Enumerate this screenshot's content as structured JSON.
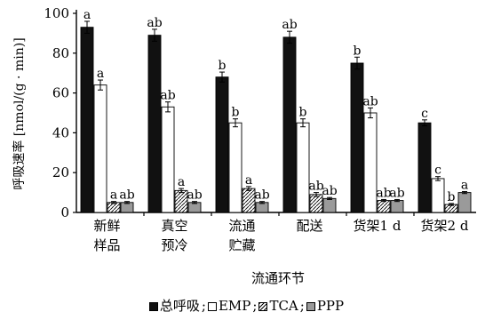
{
  "chart_data": {
    "type": "bar",
    "ylabel": "呼吸速率 [nmol/(g · min)]",
    "xlabel": "流通环节",
    "ylim": [
      0,
      100
    ],
    "yticks": [
      0,
      20,
      40,
      60,
      80,
      100
    ],
    "categories": [
      [
        "新鲜",
        "样品"
      ],
      [
        "真空",
        "预冷"
      ],
      [
        "流通",
        "贮藏"
      ],
      [
        "配送"
      ],
      [
        "货架1 d"
      ],
      [
        "货架2 d"
      ]
    ],
    "series": [
      {
        "name": "总呼吸",
        "key": "total",
        "color": "#111111",
        "values": [
          93,
          89,
          68,
          88,
          75,
          45
        ],
        "errors": [
          3,
          3,
          2.5,
          3,
          3,
          1.5
        ],
        "sig": [
          "a",
          "ab",
          "b",
          "ab",
          "b",
          "c"
        ]
      },
      {
        "name": "EMP",
        "key": "emp",
        "color": "#ffffff",
        "values": [
          64,
          53,
          45,
          45,
          50,
          17
        ],
        "errors": [
          2.5,
          2.5,
          2,
          2,
          2.5,
          1
        ],
        "sig": [
          "a",
          "ab",
          "b",
          "b",
          "ab",
          "c"
        ]
      },
      {
        "name": "TCA",
        "key": "tca",
        "color": "#ffffff",
        "values": [
          5,
          11,
          12,
          9,
          6,
          4
        ],
        "errors": [
          0.5,
          1,
          1,
          1,
          0.5,
          0.5
        ],
        "sig": [
          "a",
          "a",
          "a",
          "ab",
          "ab",
          "b"
        ]
      },
      {
        "name": "PPP",
        "key": "ppp",
        "color": "#9a9a9a",
        "values": [
          5,
          5,
          5,
          7,
          6,
          10
        ],
        "errors": [
          0.5,
          0.5,
          0.5,
          0.5,
          0.5,
          0.5
        ],
        "sig": [
          "ab",
          "ab",
          "ab",
          "ab",
          "ab",
          "a"
        ]
      }
    ],
    "legend": {
      "position": "bottom",
      "items": [
        "总呼吸",
        "EMP",
        "TCA",
        "PPP"
      ],
      "separator": ";"
    }
  }
}
